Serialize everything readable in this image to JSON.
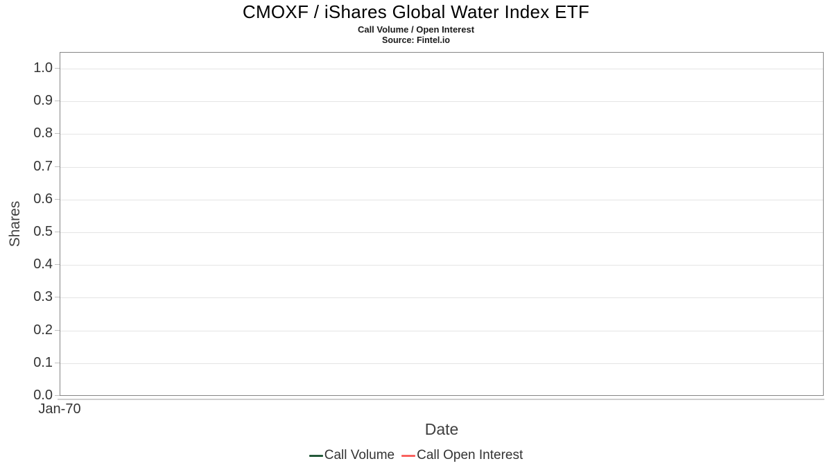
{
  "chart_data": {
    "type": "line",
    "title": "CMOXF / iShares Global Water Index ETF",
    "subtitle": "Call Volume / Open Interest",
    "source": "Source: Fintel.io",
    "xlabel": "Date",
    "ylabel": "Shares",
    "ylim": [
      0.0,
      1.0
    ],
    "y_tick_step": 0.1,
    "y_ticks": [
      "1.0",
      "0.9",
      "0.8",
      "0.7",
      "0.6",
      "0.5",
      "0.4",
      "0.3",
      "0.2",
      "0.1",
      "0.0"
    ],
    "x_ticks": [
      "Jan-70"
    ],
    "grid": true,
    "legend_position": "bottom-center",
    "series": [
      {
        "name": "Call Volume",
        "color": "#24593a",
        "x": [],
        "values": []
      },
      {
        "name": "Call Open Interest",
        "color": "#f9625f",
        "x": [],
        "values": []
      }
    ],
    "colors": {
      "plot_border": "#858585",
      "gridline": "#e4e4e4",
      "axis_line": "#cfcfcf",
      "tick": "#bfbfbf",
      "tick_label": "#333333",
      "axis_title": "#404040",
      "title_text": "#000000",
      "legend_text": "#333333"
    }
  }
}
